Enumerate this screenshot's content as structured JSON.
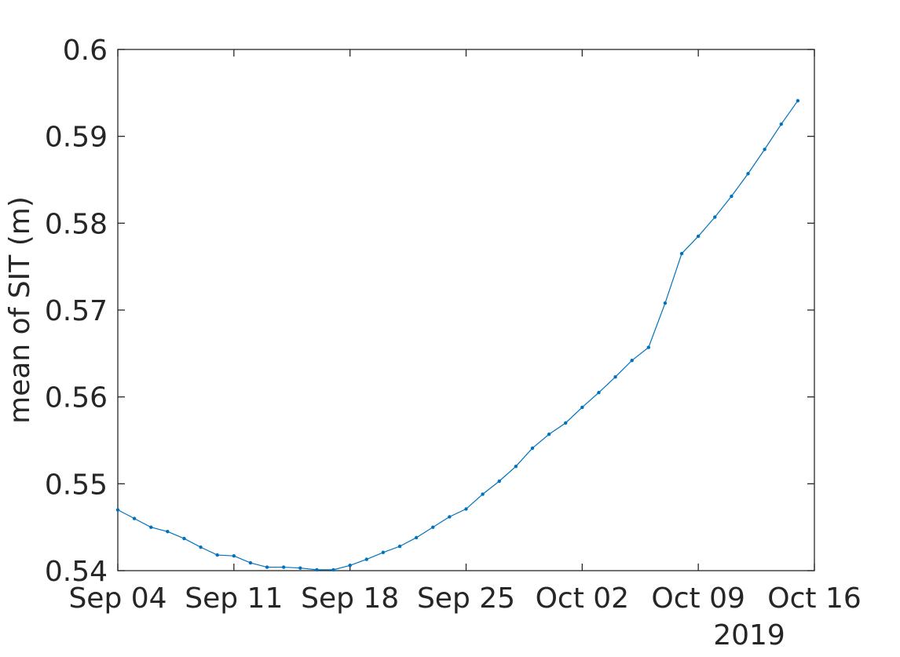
{
  "chart_data": {
    "type": "line",
    "title": "",
    "xlabel": "",
    "ylabel": "mean of SIT (m)",
    "x_year_label": "2019",
    "x_ticks": [
      "Sep 04",
      "Sep 11",
      "Sep 18",
      "Sep 25",
      "Oct 02",
      "Oct 09",
      "Oct 16"
    ],
    "x_tick_dates": [
      "2019-09-04",
      "2019-09-11",
      "2019-09-18",
      "2019-09-25",
      "2019-10-02",
      "2019-10-09",
      "2019-10-16"
    ],
    "xlim": [
      "2019-09-04",
      "2019-10-16"
    ],
    "y_ticks": [
      "0.54",
      "0.55",
      "0.56",
      "0.57",
      "0.58",
      "0.59",
      "0.6"
    ],
    "y_tick_values": [
      0.54,
      0.55,
      0.56,
      0.57,
      0.58,
      0.59,
      0.6
    ],
    "ylim": [
      0.54,
      0.6
    ],
    "grid": false,
    "box": true,
    "series_color": "#0072BD",
    "axis_color": "#262626",
    "series": [
      {
        "x": [
          "2019-09-04",
          "2019-09-05",
          "2019-09-06",
          "2019-09-07",
          "2019-09-08",
          "2019-09-09",
          "2019-09-10",
          "2019-09-11",
          "2019-09-12",
          "2019-09-13",
          "2019-09-14",
          "2019-09-15",
          "2019-09-16",
          "2019-09-17",
          "2019-09-18",
          "2019-09-19",
          "2019-09-20",
          "2019-09-21",
          "2019-09-22",
          "2019-09-23",
          "2019-09-24",
          "2019-09-25",
          "2019-09-26",
          "2019-09-27",
          "2019-09-28",
          "2019-09-29",
          "2019-09-30",
          "2019-10-01",
          "2019-10-02",
          "2019-10-03",
          "2019-10-04",
          "2019-10-05",
          "2019-10-06",
          "2019-10-07",
          "2019-10-08",
          "2019-10-09",
          "2019-10-10",
          "2019-10-11",
          "2019-10-12",
          "2019-10-13",
          "2019-10-14",
          "2019-10-15"
        ],
        "values": [
          0.547,
          0.546,
          0.545,
          0.5445,
          0.5437,
          0.5427,
          0.5418,
          0.5417,
          0.5409,
          0.5404,
          0.5404,
          0.5403,
          0.5401,
          0.5401,
          0.5406,
          0.5413,
          0.5421,
          0.5428,
          0.5438,
          0.545,
          0.5462,
          0.5471,
          0.5488,
          0.5503,
          0.552,
          0.5541,
          0.5557,
          0.557,
          0.5588,
          0.5605,
          0.5623,
          0.5642,
          0.5657,
          0.5708,
          0.5765,
          0.5785,
          0.5807,
          0.5831,
          0.5857,
          0.5885,
          0.5914,
          0.5941
        ]
      }
    ]
  }
}
